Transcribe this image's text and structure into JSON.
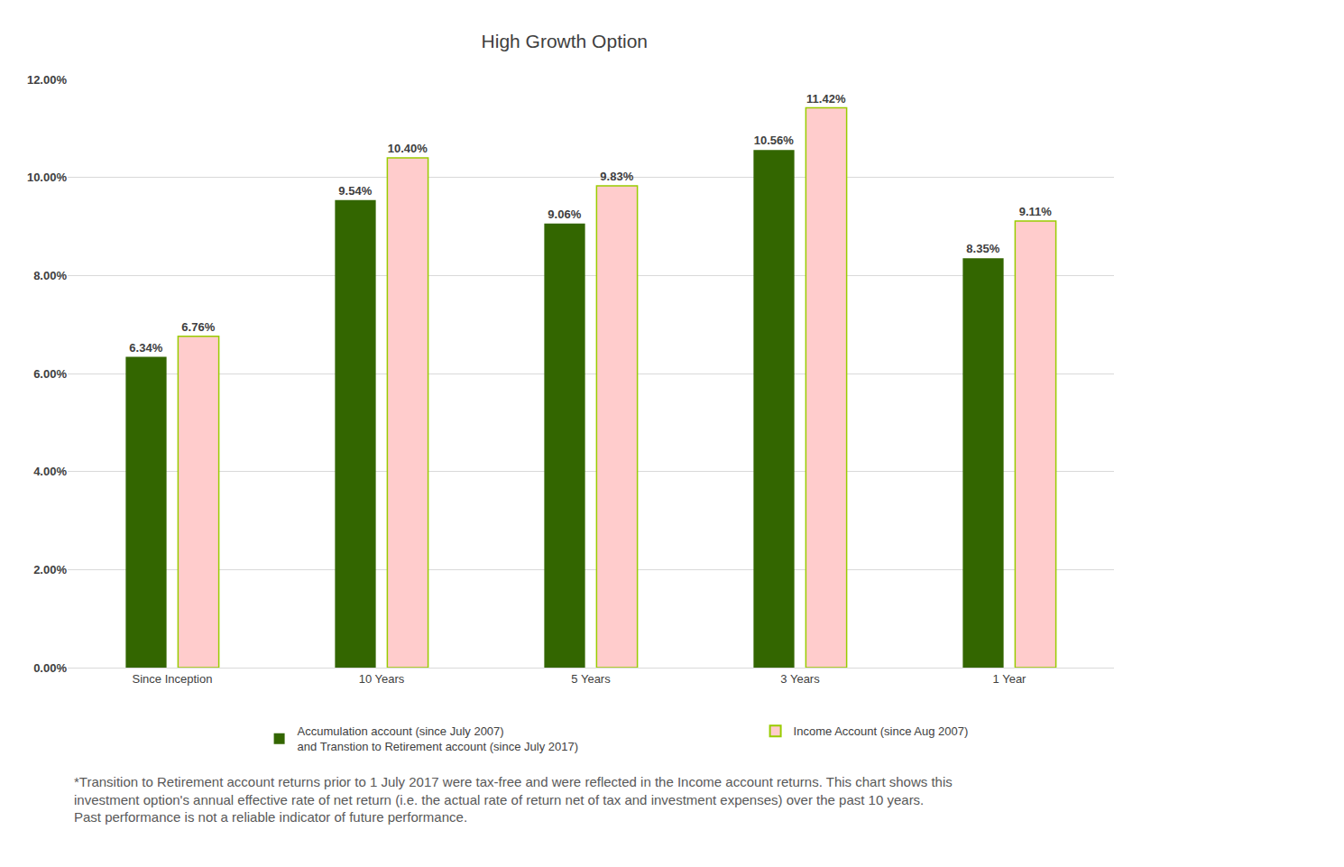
{
  "chart_data": {
    "type": "bar",
    "title": "High Growth Option",
    "categories": [
      "Since Inception",
      "10 Years",
      "5 Years",
      "3 Years",
      "1 Year"
    ],
    "series": [
      {
        "name": "Accumulation account (since July 2007)\nand Transtion to Retirement account (since July 2017)",
        "color": "#336600",
        "values": [
          6.34,
          9.54,
          9.06,
          10.56,
          8.35
        ],
        "value_labels": [
          "6.34%",
          "9.54%",
          "9.06%",
          "10.56%",
          "8.35%"
        ]
      },
      {
        "name": "Income Account (since Aug 2007)",
        "color": "#ffcccc",
        "values": [
          6.76,
          10.4,
          9.83,
          11.42,
          9.11
        ],
        "value_labels": [
          "6.76%",
          "10.40%",
          "9.83%",
          "11.42%",
          "9.11%"
        ]
      }
    ],
    "ylim": [
      0,
      12
    ],
    "yticks": [
      {
        "value": 0,
        "label": "0.00%"
      },
      {
        "value": 2,
        "label": "2.00%"
      },
      {
        "value": 4,
        "label": "4.00%"
      },
      {
        "value": 6,
        "label": "6.00%"
      },
      {
        "value": 8,
        "label": "8.00%"
      },
      {
        "value": 10,
        "label": "10.00%"
      },
      {
        "value": 12,
        "label": "12.00%"
      }
    ],
    "grid": true,
    "legend": "bottom",
    "data_labels": true,
    "annotations": [
      "*Transition to Retirement account returns prior to 1 July 2017 were tax-free and were reflected in the Income account returns. This chart shows this\ninvestment option's annual effective rate of net return (i.e. the actual rate of return net of tax and investment expenses) over the past 10 years.\nPast performance is not a reliable indicator of future performance."
    ]
  }
}
